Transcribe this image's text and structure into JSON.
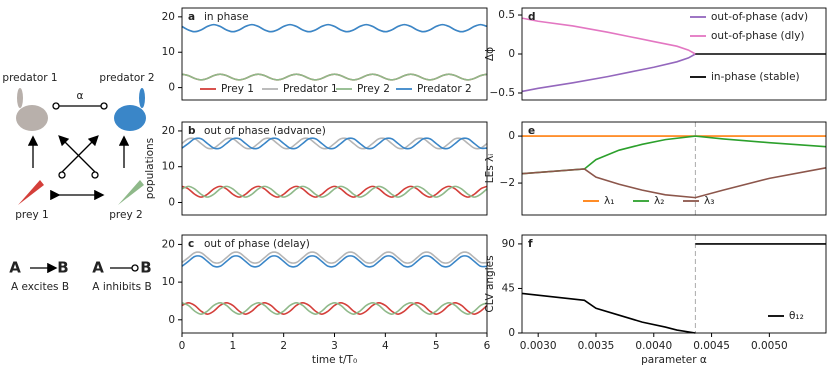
{
  "diagram": {
    "predator1": "predator 1",
    "predator2": "predator 2",
    "alpha": "α",
    "prey1": "prey 1",
    "prey2": "prey 2",
    "a1": "A",
    "b1": "B",
    "a2": "A",
    "b2": "B",
    "excites": "A excites B",
    "inhibits": "A inhibits B"
  },
  "chart_data": [
    {
      "type": "line",
      "panel": "a",
      "title": "in phase",
      "smooth": true,
      "xlim": [
        0,
        6
      ],
      "ylim": [
        -3.5,
        22.5
      ],
      "yticks": [
        0,
        10,
        20
      ],
      "x": [
        0,
        0.125,
        0.25,
        0.375,
        0.5,
        0.625,
        0.75,
        0.875,
        1,
        1.125,
        1.25,
        1.375,
        1.5,
        1.625,
        1.75,
        1.875,
        2,
        2.125,
        2.25,
        2.375,
        2.5,
        2.625,
        2.75,
        2.875,
        3,
        3.125,
        3.25,
        3.375,
        3.5,
        3.625,
        3.75,
        3.875,
        4,
        4.125,
        4.25,
        4.375,
        4.5,
        4.625,
        4.75,
        4.875,
        5,
        5.125,
        5.25,
        5.375,
        5.5,
        5.625,
        5.75,
        5.875,
        6
      ],
      "series": [
        {
          "name": "Prey 1",
          "color": "#d43f3a",
          "values": [
            3.8,
            3.4,
            2.6,
            2.2,
            2.6,
            3.4,
            3.8,
            3.4,
            2.6,
            2.2,
            2.6,
            3.4,
            3.8,
            3.4,
            2.6,
            2.2,
            2.6,
            3.4,
            3.8,
            3.4,
            2.6,
            2.2,
            2.6,
            3.4,
            3.8,
            3.4,
            2.6,
            2.2,
            2.6,
            3.4,
            3.8,
            3.4,
            2.6,
            2.2,
            2.6,
            3.4,
            3.8,
            3.4,
            2.6,
            2.2,
            2.6,
            3.4,
            3.8,
            3.4,
            2.6,
            2.2,
            2.6,
            3.4,
            3.8
          ]
        },
        {
          "name": "Predator 1",
          "color": "#b5b5b5",
          "values": [
            17.3,
            16.3,
            15.8,
            16.3,
            17.3,
            17.8,
            17.3,
            16.3,
            15.8,
            16.3,
            17.3,
            17.8,
            17.3,
            16.3,
            15.8,
            16.3,
            17.3,
            17.8,
            17.3,
            16.3,
            15.8,
            16.3,
            17.3,
            17.8,
            17.3,
            16.3,
            15.8,
            16.3,
            17.3,
            17.8,
            17.3,
            16.3,
            15.8,
            16.3,
            17.3,
            17.8,
            17.3,
            16.3,
            15.8,
            16.3,
            17.3,
            17.8,
            17.3,
            16.3,
            15.8,
            16.3,
            17.3,
            17.8,
            17.3
          ]
        },
        {
          "name": "Prey 2",
          "color": "#8fb98a",
          "values": [
            3.8,
            3.4,
            2.6,
            2.2,
            2.6,
            3.4,
            3.8,
            3.4,
            2.6,
            2.2,
            2.6,
            3.4,
            3.8,
            3.4,
            2.6,
            2.2,
            2.6,
            3.4,
            3.8,
            3.4,
            2.6,
            2.2,
            2.6,
            3.4,
            3.8,
            3.4,
            2.6,
            2.2,
            2.6,
            3.4,
            3.8,
            3.4,
            2.6,
            2.2,
            2.6,
            3.4,
            3.8,
            3.4,
            2.6,
            2.2,
            2.6,
            3.4,
            3.8,
            3.4,
            2.6,
            2.2,
            2.6,
            3.4,
            3.8
          ]
        },
        {
          "name": "Predator 2",
          "color": "#3a86c8",
          "values": [
            17.3,
            16.3,
            15.8,
            16.3,
            17.3,
            17.8,
            17.3,
            16.3,
            15.8,
            16.3,
            17.3,
            17.8,
            17.3,
            16.3,
            15.8,
            16.3,
            17.3,
            17.8,
            17.3,
            16.3,
            15.8,
            16.3,
            17.3,
            17.8,
            17.3,
            16.3,
            15.8,
            16.3,
            17.3,
            17.8,
            17.3,
            16.3,
            15.8,
            16.3,
            17.3,
            17.8,
            17.3,
            16.3,
            15.8,
            16.3,
            17.3,
            17.8,
            17.3,
            16.3,
            15.8,
            16.3,
            17.3,
            17.8,
            17.3
          ]
        }
      ]
    },
    {
      "type": "line",
      "panel": "b",
      "title": "out of phase (advance)",
      "ylabel": "populations",
      "smooth": true,
      "xlim": [
        0,
        6
      ],
      "ylim": [
        -3.5,
        22.5
      ],
      "yticks": [
        0,
        10,
        20
      ],
      "x": [
        0,
        0.125,
        0.25,
        0.375,
        0.5,
        0.625,
        0.75,
        0.875,
        1,
        1.125,
        1.25,
        1.375,
        1.5,
        1.625,
        1.75,
        1.875,
        2,
        2.125,
        2.25,
        2.375,
        2.5,
        2.625,
        2.75,
        2.875,
        3,
        3.125,
        3.25,
        3.375,
        3.5,
        3.625,
        3.75,
        3.875,
        4,
        4.125,
        4.25,
        4.375,
        4.5,
        4.625,
        4.75,
        4.875,
        5,
        5.125,
        5.25,
        5.375,
        5.5,
        5.625,
        5.75,
        5.875,
        6
      ],
      "series": [
        {
          "name": "Prey 1",
          "color": "#d43f3a",
          "values": [
            4.5,
            3.8,
            2.3,
            1.5,
            2.3,
            3.8,
            4.5,
            3.8,
            2.3,
            1.5,
            2.3,
            3.8,
            4.5,
            3.8,
            2.3,
            1.5,
            2.3,
            3.8,
            4.5,
            3.8,
            2.3,
            1.5,
            2.3,
            3.8,
            4.5,
            3.8,
            2.3,
            1.5,
            2.3,
            3.8,
            4.5,
            3.8,
            2.3,
            1.5,
            2.3,
            3.8,
            4.5,
            3.8,
            2.3,
            1.5,
            2.3,
            3.8,
            4.5,
            3.8,
            2.3,
            1.5,
            2.3,
            3.8,
            4.5
          ]
        },
        {
          "name": "Predator 1",
          "color": "#b5b5b5",
          "values": [
            16.5,
            17.8,
            17.8,
            16.5,
            15.2,
            15.2,
            16.5,
            17.8,
            17.8,
            16.5,
            15.2,
            15.2,
            16.5,
            17.8,
            17.8,
            16.5,
            15.2,
            15.2,
            16.5,
            17.8,
            17.8,
            16.5,
            15.2,
            15.2,
            16.5,
            17.8,
            17.8,
            16.5,
            15.2,
            15.2,
            16.5,
            17.8,
            17.8,
            16.5,
            15.2,
            15.2,
            16.5,
            17.8,
            17.8,
            16.5,
            15.2,
            15.2,
            16.5,
            17.8,
            17.8,
            16.5,
            15.2,
            15.2,
            16.5
          ]
        },
        {
          "name": "Prey 2",
          "color": "#8fb98a",
          "values": [
            3.8,
            4.5,
            3.8,
            2.3,
            1.5,
            2.3,
            3.8,
            4.5,
            3.8,
            2.3,
            1.5,
            2.3,
            3.8,
            4.5,
            3.8,
            2.3,
            1.5,
            2.3,
            3.8,
            4.5,
            3.8,
            2.3,
            1.5,
            2.3,
            3.8,
            4.5,
            3.8,
            2.3,
            1.5,
            2.3,
            3.8,
            4.5,
            3.8,
            2.3,
            1.5,
            2.3,
            3.8,
            4.5,
            3.8,
            2.3,
            1.5,
            2.3,
            3.8,
            4.5,
            3.8,
            2.3,
            1.5,
            2.3,
            3.8
          ]
        },
        {
          "name": "Predator 2",
          "color": "#3a86c8",
          "values": [
            15.2,
            16.5,
            17.8,
            17.8,
            16.5,
            15.2,
            15.2,
            16.5,
            17.8,
            17.8,
            16.5,
            15.2,
            15.2,
            16.5,
            17.8,
            17.8,
            16.5,
            15.2,
            15.2,
            16.5,
            17.8,
            17.8,
            16.5,
            15.2,
            15.2,
            16.5,
            17.8,
            17.8,
            16.5,
            15.2,
            15.2,
            16.5,
            17.8,
            17.8,
            16.5,
            15.2,
            15.2,
            16.5,
            17.8,
            17.8,
            16.5,
            15.2,
            15.2,
            16.5,
            17.8,
            17.8,
            16.5,
            15.2,
            15.2
          ]
        }
      ]
    },
    {
      "type": "line",
      "panel": "c",
      "title": "out of phase (delay)",
      "xlabel": "time t/T₀",
      "smooth": true,
      "xlim": [
        0,
        6
      ],
      "xticks": [
        0,
        1,
        2,
        3,
        4,
        5,
        6
      ],
      "ylim": [
        -3.5,
        22.5
      ],
      "yticks": [
        0,
        10,
        20
      ],
      "x": [
        0,
        0.125,
        0.25,
        0.375,
        0.5,
        0.625,
        0.75,
        0.875,
        1,
        1.125,
        1.25,
        1.375,
        1.5,
        1.625,
        1.75,
        1.875,
        2,
        2.125,
        2.25,
        2.375,
        2.5,
        2.625,
        2.75,
        2.875,
        3,
        3.125,
        3.25,
        3.375,
        3.5,
        3.625,
        3.75,
        3.875,
        4,
        4.125,
        4.25,
        4.375,
        4.5,
        4.625,
        4.75,
        4.875,
        5,
        5.125,
        5.25,
        5.375,
        5.5,
        5.625,
        5.75,
        5.875,
        6
      ],
      "series": [
        {
          "name": "Prey 1",
          "color": "#d43f3a",
          "values": [
            3.8,
            4.5,
            3.8,
            2.3,
            1.5,
            2.3,
            3.8,
            4.5,
            3.8,
            2.3,
            1.5,
            2.3,
            3.8,
            4.5,
            3.8,
            2.3,
            1.5,
            2.3,
            3.8,
            4.5,
            3.8,
            2.3,
            1.5,
            2.3,
            3.8,
            4.5,
            3.8,
            2.3,
            1.5,
            2.3,
            3.8,
            4.5,
            3.8,
            2.3,
            1.5,
            2.3,
            3.8,
            4.5,
            3.8,
            2.3,
            1.5,
            2.3,
            3.8,
            4.5,
            3.8,
            2.3,
            1.5,
            2.3,
            3.8
          ]
        },
        {
          "name": "Predator 1",
          "color": "#b5b5b5",
          "values": [
            15.2,
            16.5,
            17.8,
            17.8,
            16.5,
            15.2,
            15.2,
            16.5,
            17.8,
            17.8,
            16.5,
            15.2,
            15.2,
            16.5,
            17.8,
            17.8,
            16.5,
            15.2,
            15.2,
            16.5,
            17.8,
            17.8,
            16.5,
            15.2,
            15.2,
            16.5,
            17.8,
            17.8,
            16.5,
            15.2,
            15.2,
            16.5,
            17.8,
            17.8,
            16.5,
            15.2,
            15.2,
            16.5,
            17.8,
            17.8,
            16.5,
            15.2,
            15.2,
            16.5,
            17.8,
            17.8,
            16.5,
            15.2,
            15.2
          ]
        },
        {
          "name": "Prey 2",
          "color": "#8fb98a",
          "values": [
            4.5,
            3.8,
            2.3,
            1.5,
            2.3,
            3.8,
            4.5,
            3.8,
            2.3,
            1.5,
            2.3,
            3.8,
            4.5,
            3.8,
            2.3,
            1.5,
            2.3,
            3.8,
            4.5,
            3.8,
            2.3,
            1.5,
            2.3,
            3.8,
            4.5,
            3.8,
            2.3,
            1.5,
            2.3,
            3.8,
            4.5,
            3.8,
            2.3,
            1.5,
            2.3,
            3.8,
            4.5,
            3.8,
            2.3,
            1.5,
            2.3,
            3.8,
            4.5,
            3.8,
            2.3,
            1.5,
            2.3,
            3.8,
            4.5
          ]
        },
        {
          "name": "Predator 2",
          "color": "#3a86c8",
          "values": [
            14.2,
            15.5,
            16.8,
            16.8,
            15.5,
            14.2,
            14.2,
            15.5,
            16.8,
            16.8,
            15.5,
            14.2,
            14.2,
            15.5,
            16.8,
            16.8,
            15.5,
            14.2,
            14.2,
            15.5,
            16.8,
            16.8,
            15.5,
            14.2,
            14.2,
            15.5,
            16.8,
            16.8,
            15.5,
            14.2,
            14.2,
            15.5,
            16.8,
            16.8,
            15.5,
            14.2,
            14.2,
            15.5,
            16.8,
            16.8,
            15.5,
            14.2,
            14.2,
            15.5,
            16.8,
            16.8,
            15.5,
            14.2,
            14.2
          ]
        }
      ]
    },
    {
      "type": "line",
      "panel": "d",
      "ylabel": "Δϕ",
      "xlim": [
        0.00286,
        0.00549
      ],
      "ylim": [
        -0.59,
        0.59
      ],
      "yticks": [
        {
          "value": -0.5,
          "label": "−0.5"
        },
        0,
        0.5
      ],
      "series": [
        {
          "name": "out-of-phase (adv)",
          "color": "#9467bd",
          "x": [
            0.00286,
            0.003,
            0.0033,
            0.0036,
            0.0038,
            0.004,
            0.0042,
            0.0043,
            0.00436
          ],
          "values": [
            -0.48,
            -0.44,
            -0.37,
            -0.29,
            -0.23,
            -0.17,
            -0.1,
            -0.05,
            0
          ]
        },
        {
          "name": "out-of-phase (dly)",
          "color": "#e377c2",
          "x": [
            0.00286,
            0.003,
            0.0033,
            0.0036,
            0.0038,
            0.004,
            0.0042,
            0.0043,
            0.00436
          ],
          "values": [
            0.46,
            0.42,
            0.36,
            0.28,
            0.22,
            0.16,
            0.1,
            0.05,
            0
          ]
        },
        {
          "name": "in-phase (stable)",
          "color": "#000000",
          "x": [
            0.00436,
            0.00549
          ],
          "values": [
            0,
            0
          ]
        }
      ]
    },
    {
      "type": "line",
      "panel": "e",
      "ylabel": "LEs λᵢ",
      "xlim": [
        0.00286,
        0.00549
      ],
      "ylim": [
        -3.36,
        0.6
      ],
      "yticks": [
        {
          "value": -2,
          "label": "−2"
        },
        0
      ],
      "vline": 0.00436,
      "series": [
        {
          "name": "λ₁",
          "color": "#ff7f0e",
          "x": [
            0.00286,
            0.00549
          ],
          "values": [
            0,
            0
          ]
        },
        {
          "name": "λ₂",
          "color": "#2ca02c",
          "x": [
            0.00286,
            0.0034,
            0.0035,
            0.0037,
            0.0039,
            0.0041,
            0.00436,
            0.0046,
            0.005,
            0.00549
          ],
          "values": [
            -1.6,
            -1.4,
            -1.0,
            -0.6,
            -0.35,
            -0.15,
            0,
            -0.12,
            -0.28,
            -0.45
          ]
        },
        {
          "name": "λ₃",
          "color": "#8c564b",
          "x": [
            0.00286,
            0.0034,
            0.0035,
            0.0037,
            0.0039,
            0.0041,
            0.00436,
            0.0046,
            0.005,
            0.00549
          ],
          "values": [
            -1.6,
            -1.4,
            -1.75,
            -2.05,
            -2.3,
            -2.5,
            -2.62,
            -2.3,
            -1.8,
            -1.35
          ]
        }
      ]
    },
    {
      "type": "line",
      "panel": "f",
      "ylabel": "CLV angles",
      "xlabel": "parameter α",
      "xlim": [
        0.00286,
        0.00549
      ],
      "ylim": [
        0,
        99
      ],
      "yticks": [
        0,
        45,
        90
      ],
      "vline": 0.00436,
      "xticks": [
        {
          "value": 0.003,
          "label": "0.0030"
        },
        {
          "value": 0.0035,
          "label": "0.0035"
        },
        {
          "value": 0.004,
          "label": "0.0040"
        },
        {
          "value": 0.0045,
          "label": "0.0045"
        },
        {
          "value": 0.005,
          "label": "0.0050"
        }
      ],
      "series": [
        {
          "name": "θ₁₂",
          "color": "#000000",
          "x": [
            0.00286,
            0.0034,
            0.0035,
            0.0037,
            0.0039,
            0.0041,
            0.0042,
            0.00436,
            0.00436,
            0.00436,
            0.00549
          ],
          "values": [
            40,
            33,
            25,
            18,
            11,
            6,
            3,
            0,
            null,
            90,
            90
          ]
        }
      ]
    }
  ]
}
